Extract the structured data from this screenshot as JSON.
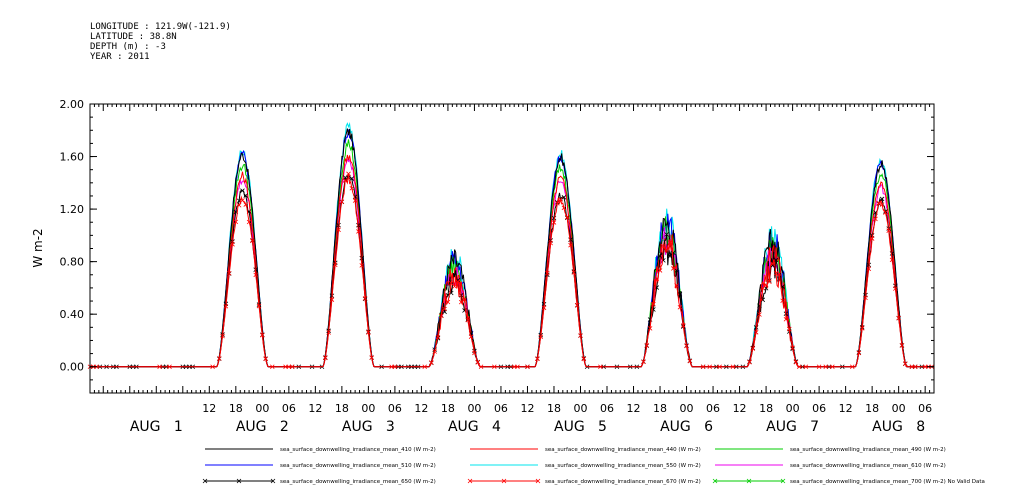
{
  "header": {
    "longitude": "LONGITUDE : 121.9W(-121.9)",
    "latitude": "LATITUDE : 38.8N",
    "depth": "DEPTH (m) : -3",
    "year": "YEAR : 2011"
  },
  "chart_data": {
    "type": "line",
    "title": "",
    "xlabel": "",
    "ylabel": "W m-2",
    "ylim": [
      -0.2,
      2.0
    ],
    "yticks": [
      0.0,
      0.4,
      0.8,
      1.2,
      1.6,
      2.0
    ],
    "ytick_labels": [
      "0.00",
      "0.40",
      "0.80",
      "1.20",
      "1.60",
      "2.00"
    ],
    "x_hour_labels": [
      {
        "hours": 12,
        "label": "12"
      },
      {
        "hours": 18,
        "label": "18"
      },
      {
        "hours": 24,
        "label": "00"
      },
      {
        "hours": 30,
        "label": "06"
      },
      {
        "hours": 36,
        "label": "12"
      },
      {
        "hours": 42,
        "label": "18"
      },
      {
        "hours": 48,
        "label": "00"
      },
      {
        "hours": 54,
        "label": "06"
      },
      {
        "hours": 60,
        "label": "12"
      },
      {
        "hours": 66,
        "label": "18"
      },
      {
        "hours": 72,
        "label": "00"
      },
      {
        "hours": 78,
        "label": "06"
      },
      {
        "hours": 84,
        "label": "12"
      },
      {
        "hours": 90,
        "label": "18"
      },
      {
        "hours": 96,
        "label": "00"
      },
      {
        "hours": 102,
        "label": "06"
      },
      {
        "hours": 108,
        "label": "12"
      },
      {
        "hours": 114,
        "label": "18"
      },
      {
        "hours": 120,
        "label": "00"
      },
      {
        "hours": 126,
        "label": "06"
      },
      {
        "hours": 132,
        "label": "12"
      },
      {
        "hours": 138,
        "label": "18"
      },
      {
        "hours": 144,
        "label": "00"
      },
      {
        "hours": 150,
        "label": "06"
      },
      {
        "hours": 156,
        "label": "12"
      },
      {
        "hours": 162,
        "label": "18"
      },
      {
        "hours": 168,
        "label": "00"
      },
      {
        "hours": 174,
        "label": "06"
      }
    ],
    "x_day_labels": [
      {
        "hours": 0,
        "label": "AUG   1"
      },
      {
        "hours": 24,
        "label": "AUG   2"
      },
      {
        "hours": 48,
        "label": "AUG   3"
      },
      {
        "hours": 72,
        "label": "AUG   4"
      },
      {
        "hours": 96,
        "label": "AUG   5"
      },
      {
        "hours": 120,
        "label": "AUG   6"
      },
      {
        "hours": 144,
        "label": "AUG   7"
      },
      {
        "hours": 168,
        "label": "AUG   8"
      }
    ],
    "xlim_hours": [
      -15,
      176
    ],
    "daily_peaks": [
      {
        "day": "AUG 1",
        "peak_hour": 19.5,
        "peak_410": 1.62,
        "noisy": false
      },
      {
        "day": "AUG 2",
        "peak_hour": 43.5,
        "peak_410": 1.8,
        "noisy": false
      },
      {
        "day": "AUG 3",
        "peak_hour": 67.5,
        "peak_410": 0.85,
        "noisy": true
      },
      {
        "day": "AUG 4",
        "peak_hour": 91.5,
        "peak_410": 1.6,
        "noisy": false
      },
      {
        "day": "AUG 5",
        "peak_hour": 115.5,
        "peak_410": 1.15,
        "noisy": true
      },
      {
        "day": "AUG 6",
        "peak_hour": 139.5,
        "peak_410": 1.0,
        "noisy": true
      },
      {
        "day": "AUG 7",
        "peak_hour": 164.0,
        "peak_410": 1.55,
        "noisy": false
      }
    ],
    "series": [
      {
        "name": "sea_surface_downwelling_irradiance_mean_410 (W m-2)",
        "color": "#000000",
        "marker": "none",
        "scale": 1.0
      },
      {
        "name": "sea_surface_downwelling_irradiance_mean_440 (W m-2)",
        "color": "#ff0000",
        "marker": "none",
        "scale": 0.9
      },
      {
        "name": "sea_surface_downwelling_irradiance_mean_490 (W m-2)",
        "color": "#00cc00",
        "marker": "none",
        "scale": 0.95
      },
      {
        "name": "sea_surface_downwelling_irradiance_mean_510 (W m-2)",
        "color": "#0000ff",
        "marker": "none",
        "scale": 1.0
      },
      {
        "name": "sea_surface_downwelling_irradiance_mean_550 (W m-2)",
        "color": "#00e5ee",
        "marker": "none",
        "scale": 1.02
      },
      {
        "name": "sea_surface_downwelling_irradiance_mean_610 (W m-2)",
        "color": "#ee00ee",
        "marker": "none",
        "scale": 0.88
      },
      {
        "name": "sea_surface_downwelling_irradiance_mean_650 (W m-2)",
        "color": "#000000",
        "marker": "x",
        "scale": 0.82
      },
      {
        "name": "sea_surface_downwelling_irradiance_mean_670 (W m-2)",
        "color": "#ff0000",
        "marker": "x",
        "scale": 0.8
      },
      {
        "name": "sea_surface_downwelling_irradiance_mean_700 (W m-2) No Valid Data",
        "color": "#00cc00",
        "marker": "x",
        "scale": 0
      }
    ]
  }
}
